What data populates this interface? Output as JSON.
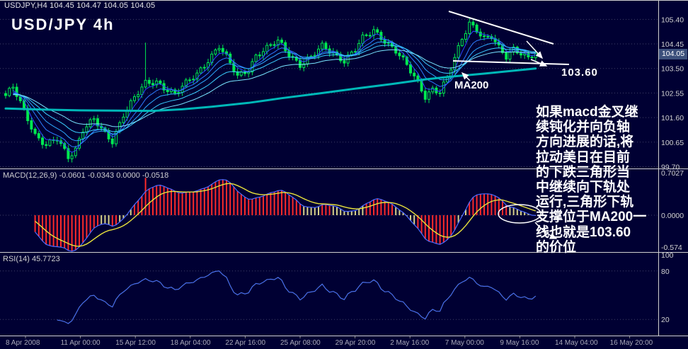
{
  "header": {
    "info": "USDJPY,H4 104.45 104.47 104.05 104.05",
    "chart_label": "USD/JPY 4h"
  },
  "annotations": {
    "ma200_label": "MA200",
    "support_label": "103.60",
    "note_lines": [
      "如果macd金叉继",
      "续钝化并向负轴",
      "方向进展的话,将",
      "拉动美日在目前",
      "的下跌三角形当",
      "中继续向下轨处",
      "运行,三角形下轨",
      "支撑位于MA200一",
      "线也就是103.60",
      "的价位"
    ]
  },
  "panels": {
    "main": {
      "price_ticks": [
        105.4,
        104.45,
        103.5,
        102.55,
        101.6,
        100.65,
        99.7
      ],
      "price_box": "104.05"
    },
    "macd": {
      "label": "MACD(12,26,9) -0.0601 -0.0343 0.0000 -0.0518",
      "ticks": [
        {
          "v": 0.7027,
          "label": "0.7027"
        },
        {
          "v": 0,
          "label": "0.0000"
        },
        {
          "v": -0.574,
          "label": "-0.574"
        }
      ]
    },
    "rsi": {
      "label": "RSI(14) 45.7723",
      "ticks": [
        {
          "v": 100,
          "label": "100"
        },
        {
          "v": 80,
          "label": "80"
        },
        {
          "v": 20,
          "label": "20"
        }
      ],
      "levels": [
        80,
        20
      ]
    }
  },
  "time_axis": {
    "labels": [
      "8 Apr 2008",
      "11 Apr 00:00",
      "15 Apr 12:00",
      "18 Apr 04:00",
      "22 Apr 16:00",
      "25 Apr 08:00",
      "29 Apr 20:00",
      "2 May 16:00",
      "7 May 00:00",
      "9 May 16:00",
      "14 May 04:00",
      "16 May 20:00"
    ]
  },
  "chart_data": {
    "type": "candlestick",
    "symbol": "USDJPY",
    "timeframe": "H4",
    "ohlc_current": {
      "open": 104.45,
      "high": 104.47,
      "low": 104.05,
      "close": 104.05
    },
    "bars": 145,
    "close_anchors": [
      [
        0,
        102.4
      ],
      [
        2,
        102.75
      ],
      [
        4,
        102.2
      ],
      [
        6,
        101.6
      ],
      [
        8,
        100.95
      ],
      [
        11,
        100.5
      ],
      [
        14,
        100.75
      ],
      [
        17,
        100.1
      ],
      [
        19,
        100.4
      ],
      [
        21,
        101.15
      ],
      [
        24,
        101.5
      ],
      [
        27,
        100.95
      ],
      [
        29,
        100.7
      ],
      [
        32,
        101.75
      ],
      [
        35,
        102.35
      ],
      [
        38,
        102.9
      ],
      [
        41,
        103.0
      ],
      [
        44,
        102.7
      ],
      [
        46,
        102.5
      ],
      [
        49,
        102.9
      ],
      [
        52,
        103.3
      ],
      [
        55,
        103.85
      ],
      [
        58,
        104.35
      ],
      [
        60,
        103.9
      ],
      [
        63,
        103.2
      ],
      [
        66,
        103.5
      ],
      [
        68,
        104.0
      ],
      [
        71,
        104.25
      ],
      [
        74,
        104.55
      ],
      [
        77,
        104.1
      ],
      [
        80,
        103.65
      ],
      [
        83,
        103.9
      ],
      [
        86,
        104.35
      ],
      [
        89,
        104.15
      ],
      [
        92,
        103.8
      ],
      [
        95,
        104.2
      ],
      [
        97,
        104.65
      ],
      [
        100,
        105.0
      ],
      [
        103,
        104.6
      ],
      [
        106,
        104.15
      ],
      [
        109,
        103.6
      ],
      [
        112,
        103.0
      ],
      [
        114,
        102.45
      ],
      [
        116,
        102.7
      ],
      [
        118,
        102.55
      ],
      [
        120,
        103.1
      ],
      [
        122,
        103.9
      ],
      [
        124,
        104.7
      ],
      [
        126,
        105.3
      ],
      [
        128,
        105.0
      ],
      [
        130,
        104.6
      ],
      [
        132,
        104.7
      ],
      [
        134,
        104.3
      ],
      [
        136,
        104.0
      ],
      [
        138,
        104.3
      ],
      [
        140,
        104.1
      ],
      [
        142,
        103.85
      ],
      [
        144,
        104.05
      ]
    ],
    "spikes": [
      {
        "bar": 17,
        "low": 99.95
      },
      {
        "bar": 38,
        "high": 104.5
      }
    ],
    "noise": {
      "a1": 0.1,
      "f1": 1.7,
      "a2": 0.06,
      "f2": 0.53,
      "p2": 1.0,
      "wick_base": 0.05,
      "wick_amp": 0.1,
      "wick_f": 2.3,
      "wick_p": 0.7
    },
    "ma200_anchors": [
      [
        0,
        101.95
      ],
      [
        10,
        101.91
      ],
      [
        20,
        101.88
      ],
      [
        30,
        101.87
      ],
      [
        40,
        101.86
      ],
      [
        48,
        101.92
      ],
      [
        56,
        102.02
      ],
      [
        66,
        102.17
      ],
      [
        75,
        102.35
      ],
      [
        85,
        102.53
      ],
      [
        95,
        102.72
      ],
      [
        105,
        102.9
      ],
      [
        114,
        103.08
      ],
      [
        122,
        103.2
      ],
      [
        130,
        103.3
      ],
      [
        137,
        103.4
      ],
      [
        144,
        103.5
      ]
    ],
    "ema_periods": [
      4,
      8,
      13,
      21,
      34
    ],
    "macd_params": {
      "fast": 12,
      "slow": 26,
      "signal": 9
    },
    "macd_bar_spike": {
      "bar": 38,
      "v": 0.58
    },
    "rsi_period": 14
  },
  "colors": {
    "background": "#000033",
    "candle": "#00e850",
    "ma_ribbon": [
      "#2e46ff",
      "#2e7cff",
      "#2eaaff",
      "#3cd0ff",
      "#7ae6ff"
    ],
    "ma200": "#00b8b8",
    "macd_line": "#4d6aff",
    "signal_line": "#e8e23c",
    "hist_strong": "#ff2a2a",
    "hist_weak": "#d8d28a",
    "rsi_line": "#4a70e8",
    "grid": "#3f3f68",
    "axis_text": "#d0d0d0",
    "time_text": "#a8a8b8",
    "separator": "#cfcfcf",
    "annotation": "#ffffff",
    "price_box_bg": "#3d517c"
  }
}
